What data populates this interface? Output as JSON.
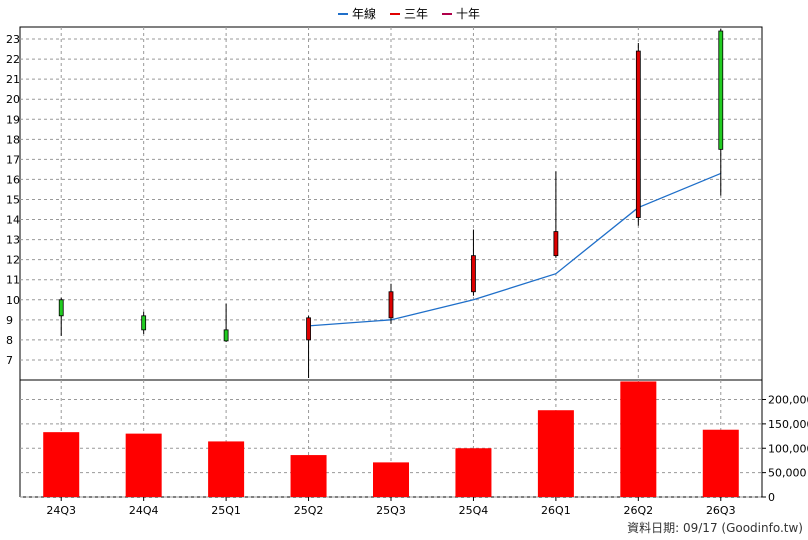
{
  "legend": [
    {
      "name": "年線",
      "color": "#1f6fc9"
    },
    {
      "name": "三年",
      "color": "#e00000"
    },
    {
      "name": "十年",
      "color": "#b0004a"
    }
  ],
  "footer": "資料日期: 09/17  (Goodinfo.tw)",
  "chart_data": [
    {
      "type": "candlestick",
      "categories": [
        "24Q3",
        "24Q4",
        "25Q1",
        "25Q2",
        "25Q3",
        "25Q4",
        "26Q1",
        "26Q2",
        "26Q3"
      ],
      "ylim": [
        6,
        23.6
      ],
      "yticks": [
        7,
        8,
        9,
        10,
        11,
        12,
        13,
        14,
        15,
        16,
        17,
        18,
        19,
        20,
        21,
        22,
        23
      ],
      "grid": true,
      "candles": [
        {
          "open": 9.2,
          "close": 10.0,
          "high": 10.1,
          "low": 8.2
        },
        {
          "open": 8.5,
          "close": 9.2,
          "high": 9.4,
          "low": 8.3
        },
        {
          "open": 7.95,
          "close": 8.5,
          "high": 9.8,
          "low": 7.9
        },
        {
          "open": 9.1,
          "close": 8.0,
          "high": 9.2,
          "low": 6.1
        },
        {
          "open": 10.4,
          "close": 9.1,
          "high": 10.8,
          "low": 8.8
        },
        {
          "open": 12.2,
          "close": 10.4,
          "high": 13.5,
          "low": 10.2
        },
        {
          "open": 13.4,
          "close": 12.2,
          "high": 16.4,
          "low": 12.1
        },
        {
          "open": 22.4,
          "close": 14.1,
          "high": 22.8,
          "low": 13.7
        },
        {
          "open": 17.5,
          "close": 23.4,
          "high": 23.5,
          "low": 15.2
        }
      ],
      "series": [
        {
          "name": "年線",
          "values": [
            null,
            null,
            null,
            8.7,
            9.0,
            10.0,
            11.3,
            14.6,
            16.3
          ]
        }
      ]
    },
    {
      "type": "bar",
      "categories": [
        "24Q3",
        "24Q4",
        "25Q1",
        "25Q2",
        "25Q3",
        "25Q4",
        "26Q1",
        "26Q2",
        "26Q3"
      ],
      "values": [
        133000,
        130000,
        114000,
        86000,
        71000,
        100000,
        178000,
        237000,
        138000
      ],
      "ylim": [
        0,
        240000
      ],
      "yticks": [
        0,
        50000,
        100000,
        150000,
        200000
      ],
      "ytick_labels": [
        "0",
        "50,000",
        "100,000",
        "150,000",
        "200,000"
      ],
      "grid": true
    }
  ]
}
